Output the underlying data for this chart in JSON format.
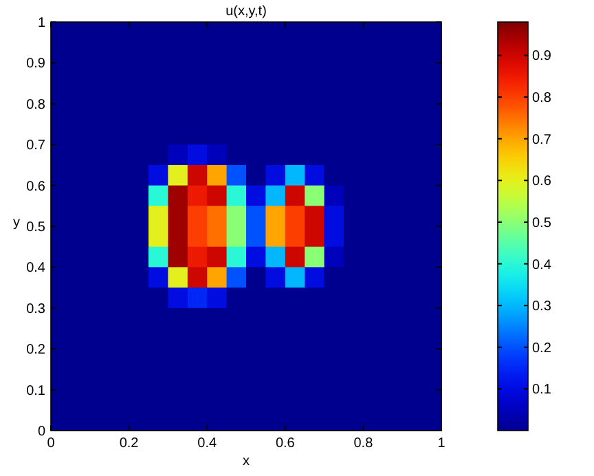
{
  "chart_data": {
    "type": "heatmap",
    "title": "u(x,y,t)",
    "xlabel": "x",
    "ylabel": "y",
    "xlim": [
      0,
      1
    ],
    "xticks": [
      0,
      0.2,
      0.4,
      0.6,
      0.8,
      1
    ],
    "ylim": [
      0,
      1
    ],
    "yticks": [
      0,
      0.1,
      0.2,
      0.3,
      0.4,
      0.5,
      0.6,
      0.7,
      0.8,
      0.9,
      1
    ],
    "clim": [
      0,
      0.98
    ],
    "cticks": [
      0.1,
      0.2,
      0.3,
      0.4,
      0.5,
      0.6,
      0.7,
      0.8,
      0.9
    ],
    "cells": [
      [
        0,
        0,
        0,
        0,
        0,
        0,
        0,
        0,
        0,
        0,
        0,
        0,
        0,
        0,
        0,
        0,
        0,
        0,
        0,
        0
      ],
      [
        0,
        0,
        0,
        0,
        0,
        0,
        0,
        0,
        0,
        0,
        0,
        0,
        0,
        0,
        0,
        0,
        0,
        0,
        0,
        0
      ],
      [
        0,
        0,
        0,
        0,
        0,
        0,
        0,
        0,
        0,
        0,
        0,
        0,
        0,
        0,
        0,
        0,
        0,
        0,
        0,
        0
      ],
      [
        0,
        0,
        0,
        0,
        0,
        0,
        0,
        0,
        0,
        0,
        0,
        0,
        0,
        0,
        0,
        0,
        0,
        0,
        0,
        0
      ],
      [
        0,
        0,
        0,
        0,
        0,
        0,
        0,
        0,
        0,
        0,
        0,
        0,
        0,
        0,
        0,
        0,
        0,
        0,
        0,
        0
      ],
      [
        0,
        0,
        0,
        0,
        0,
        0,
        0,
        0,
        0,
        0,
        0,
        0,
        0,
        0,
        0,
        0,
        0,
        0,
        0,
        0
      ],
      [
        0,
        0,
        0,
        0,
        0,
        0,
        0.05,
        0.1,
        0.05,
        0,
        0,
        0,
        0,
        0,
        0,
        0,
        0,
        0,
        0,
        0
      ],
      [
        0,
        0,
        0,
        0,
        0,
        0.1,
        0.6,
        0.9,
        0.7,
        0.2,
        0,
        0.1,
        0.3,
        0.1,
        0,
        0,
        0,
        0,
        0,
        0
      ],
      [
        0,
        0,
        0,
        0,
        0,
        0.4,
        0.95,
        0.85,
        0.9,
        0.4,
        0.1,
        0.3,
        0.9,
        0.5,
        0.05,
        0,
        0,
        0,
        0,
        0
      ],
      [
        0,
        0,
        0,
        0,
        0,
        0.6,
        0.95,
        0.8,
        0.75,
        0.5,
        0.2,
        0.7,
        0.8,
        0.9,
        0.1,
        0,
        0,
        0,
        0,
        0
      ],
      [
        0,
        0,
        0,
        0,
        0,
        0.6,
        0.95,
        0.8,
        0.75,
        0.5,
        0.2,
        0.7,
        0.8,
        0.9,
        0.1,
        0,
        0,
        0,
        0,
        0
      ],
      [
        0,
        0,
        0,
        0,
        0,
        0.4,
        0.95,
        0.85,
        0.9,
        0.4,
        0.1,
        0.3,
        0.9,
        0.5,
        0.05,
        0,
        0,
        0,
        0,
        0
      ],
      [
        0,
        0,
        0,
        0,
        0,
        0.1,
        0.6,
        0.9,
        0.7,
        0.2,
        0,
        0.1,
        0.3,
        0.1,
        0,
        0,
        0,
        0,
        0,
        0
      ],
      [
        0,
        0,
        0,
        0,
        0,
        0,
        0.1,
        0.15,
        0.1,
        0,
        0,
        0,
        0,
        0,
        0,
        0,
        0,
        0,
        0,
        0
      ],
      [
        0,
        0,
        0,
        0,
        0,
        0,
        0,
        0,
        0,
        0,
        0,
        0,
        0,
        0,
        0,
        0,
        0,
        0,
        0,
        0
      ],
      [
        0,
        0,
        0,
        0,
        0,
        0,
        0,
        0,
        0,
        0,
        0,
        0,
        0,
        0,
        0,
        0,
        0,
        0,
        0,
        0
      ],
      [
        0,
        0,
        0,
        0,
        0,
        0,
        0,
        0,
        0,
        0,
        0,
        0,
        0,
        0,
        0,
        0,
        0,
        0,
        0,
        0
      ],
      [
        0,
        0,
        0,
        0,
        0,
        0,
        0,
        0,
        0,
        0,
        0,
        0,
        0,
        0,
        0,
        0,
        0,
        0,
        0,
        0
      ],
      [
        0,
        0,
        0,
        0,
        0,
        0,
        0,
        0,
        0,
        0,
        0,
        0,
        0,
        0,
        0,
        0,
        0,
        0,
        0,
        0
      ],
      [
        0,
        0,
        0,
        0,
        0,
        0,
        0,
        0,
        0,
        0,
        0,
        0,
        0,
        0,
        0,
        0,
        0,
        0,
        0,
        0
      ]
    ]
  }
}
